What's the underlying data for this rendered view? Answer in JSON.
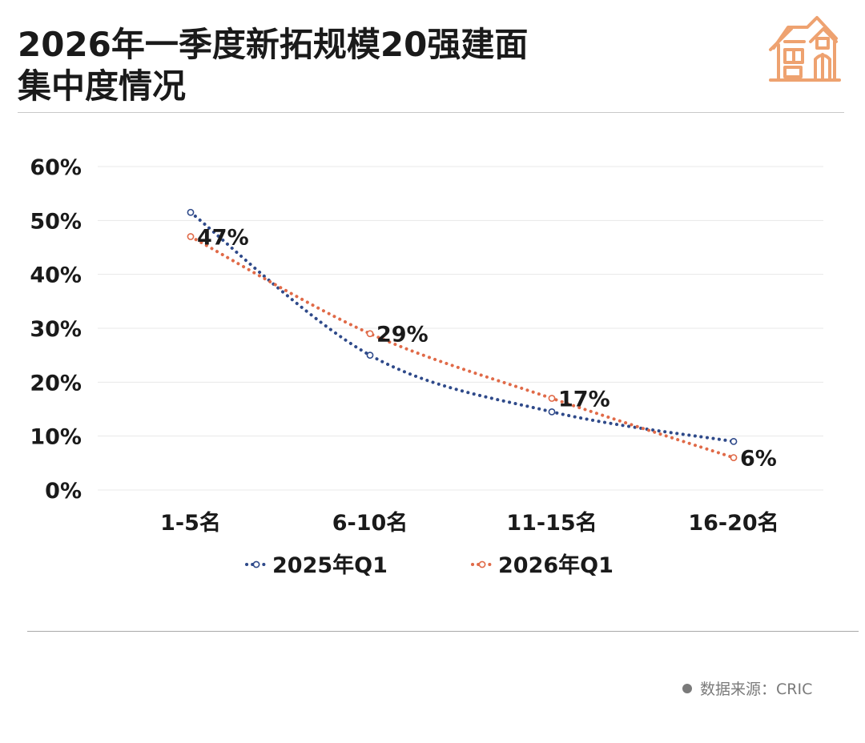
{
  "header": {
    "title_line1": "2026年一季度新拓规模20强建面",
    "title_line2": "集中度情况",
    "logo_icon": "house-icon"
  },
  "source": {
    "text": "数据来源：CRIC"
  },
  "colors": {
    "series_2025": "#2f4a8a",
    "series_2026": "#e06a48",
    "logo": "#eea270",
    "grid": "#e8e8e8",
    "text": "#1a1a1a"
  },
  "chart_data": {
    "type": "line",
    "title": "2026年一季度新拓规模20强建面集中度情况",
    "categories": [
      "1-5名",
      "6-10名",
      "11-15名",
      "16-20名"
    ],
    "y_ticks": [
      "0%",
      "10%",
      "20%",
      "30%",
      "40%",
      "50%",
      "60%"
    ],
    "ylim": [
      0,
      60
    ],
    "grid": true,
    "legend_position": "bottom",
    "line_style": "dotted",
    "series": [
      {
        "name": "2025年Q1",
        "color": "#2f4a8a",
        "values": [
          51.5,
          25,
          14.5,
          9
        ],
        "data_labels": []
      },
      {
        "name": "2026年Q1",
        "color": "#e06a48",
        "values": [
          47,
          29,
          17,
          6
        ],
        "data_labels": [
          "47%",
          "29%",
          "17%",
          "6%"
        ]
      }
    ]
  }
}
